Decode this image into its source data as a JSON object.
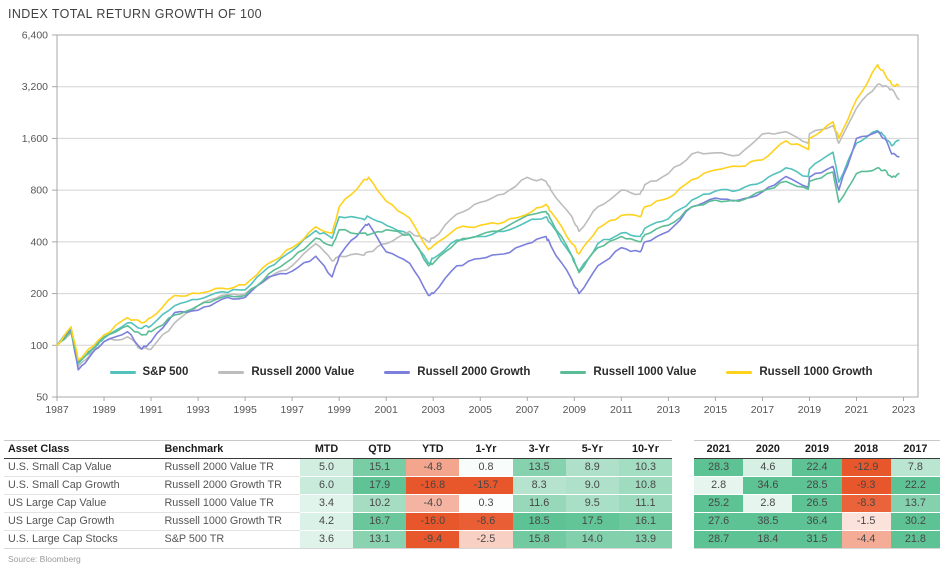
{
  "title": "INDEX TOTAL RETURN GROWTH OF 100",
  "source": "Source: Bloomberg",
  "chart_data": {
    "type": "line",
    "title": "INDEX TOTAL RETURN GROWTH OF 100",
    "y_scale": "log2",
    "ylim": [
      50,
      6400
    ],
    "grid": "horizontal",
    "legend_position": "bottom-center-inside",
    "y_tick_labels": [
      "6,400",
      "3,200",
      "1,600",
      "800",
      "400",
      "200",
      "100",
      "50"
    ],
    "y_tick_values": [
      6400,
      3200,
      1600,
      800,
      400,
      200,
      100,
      50
    ],
    "x_tick_labels": [
      "1987",
      "1989",
      "1991",
      "1993",
      "1995",
      "1997",
      "1999",
      "2001",
      "2003",
      "2005",
      "2007",
      "2009",
      "2011",
      "2013",
      "2015",
      "2017",
      "2019",
      "2021",
      "2023"
    ],
    "xlim": [
      1987,
      2023.6
    ],
    "x": [
      1987.0,
      1987.6,
      1987.9,
      1988.5,
      1989,
      1990,
      1990.6,
      1991,
      1992,
      1993,
      1994,
      1995,
      1996,
      1997,
      1998,
      1998.7,
      1999,
      2000,
      2000.25,
      2001,
      2002,
      2002.8,
      2003,
      2004,
      2005,
      2006,
      2007,
      2007.8,
      2008,
      2008.9,
      2009.2,
      2010,
      2011,
      2011.8,
      2012,
      2013,
      2014,
      2015,
      2016,
      2017,
      2018,
      2018.95,
      2019,
      2020,
      2020.25,
      2021,
      2021.9,
      2022.2,
      2022.5,
      2022.8
    ],
    "series": [
      {
        "name": "S&P 500",
        "color": "#53C2BD",
        "values": [
          100,
          125,
          78,
          95,
          110,
          135,
          125,
          130,
          170,
          185,
          205,
          210,
          285,
          355,
          465,
          420,
          560,
          545,
          560,
          500,
          440,
          300,
          320,
          410,
          430,
          460,
          525,
          560,
          510,
          330,
          270,
          390,
          450,
          430,
          480,
          545,
          700,
          790,
          800,
          895,
          1080,
          960,
          1060,
          1330,
          890,
          1500,
          1780,
          1650,
          1450,
          1560
        ]
      },
      {
        "name": "Russell 2000 Value",
        "color": "#BDBDBD",
        "values": [
          100,
          118,
          75,
          92,
          105,
          112,
          95,
          95,
          135,
          170,
          195,
          200,
          245,
          290,
          390,
          310,
          330,
          335,
          350,
          390,
          460,
          400,
          420,
          580,
          680,
          760,
          950,
          900,
          800,
          560,
          460,
          640,
          800,
          760,
          860,
          1000,
          1300,
          1320,
          1280,
          1700,
          1750,
          1500,
          1700,
          1900,
          1500,
          2400,
          3300,
          3250,
          3100,
          2700
        ]
      },
      {
        "name": "Russell 2000 Growth",
        "color": "#7C80DC",
        "values": [
          100,
          122,
          72,
          90,
          105,
          120,
          95,
          105,
          155,
          160,
          185,
          190,
          250,
          270,
          330,
          250,
          330,
          480,
          510,
          350,
          300,
          195,
          200,
          290,
          320,
          340,
          390,
          430,
          380,
          240,
          200,
          290,
          370,
          350,
          400,
          460,
          640,
          720,
          700,
          780,
          960,
          830,
          950,
          1100,
          800,
          1600,
          1750,
          1600,
          1300,
          1250
        ]
      },
      {
        "name": "Russell 1000 Value",
        "color": "#5BBD96",
        "values": [
          100,
          120,
          80,
          95,
          112,
          130,
          115,
          120,
          150,
          170,
          190,
          195,
          260,
          320,
          420,
          380,
          470,
          450,
          440,
          470,
          440,
          290,
          300,
          400,
          440,
          480,
          570,
          600,
          540,
          330,
          265,
          370,
          430,
          400,
          440,
          500,
          640,
          700,
          690,
          790,
          900,
          810,
          900,
          1020,
          680,
          1000,
          1080,
          1050,
          950,
          1000
        ]
      },
      {
        "name": "Russell 1000 Growth",
        "color": "#FFD21E",
        "values": [
          100,
          128,
          82,
          98,
          115,
          145,
          135,
          145,
          195,
          200,
          215,
          225,
          300,
          370,
          490,
          450,
          640,
          900,
          950,
          690,
          550,
          360,
          380,
          480,
          500,
          520,
          580,
          660,
          600,
          390,
          340,
          480,
          570,
          560,
          640,
          720,
          920,
          1050,
          1100,
          1200,
          1550,
          1380,
          1600,
          2000,
          1600,
          2700,
          4300,
          3800,
          3300,
          3250
        ]
      }
    ]
  },
  "table": {
    "col_headers_left": [
      "Asset Class",
      "Benchmark"
    ],
    "col_headers_returns": [
      "MTD",
      "QTD",
      "YTD",
      "1-Yr",
      "3-Yr",
      "5-Yr",
      "10-Yr"
    ],
    "col_headers_years": [
      "2021",
      "2020",
      "2019",
      "2018",
      "2017"
    ],
    "rows": [
      {
        "asset_class": "U.S. Small Cap Value",
        "benchmark": "Russell 2000 Value TR",
        "returns": [
          5.0,
          15.1,
          -4.8,
          0.8,
          13.5,
          8.9,
          10.3
        ],
        "years": [
          28.3,
          4.6,
          22.4,
          -12.9,
          7.8
        ]
      },
      {
        "asset_class": "U.S. Small Cap Growth",
        "benchmark": "Russell 2000 Growth TR",
        "returns": [
          6.0,
          17.9,
          -16.8,
          -15.7,
          8.3,
          9.0,
          10.8
        ],
        "years": [
          2.8,
          34.6,
          28.5,
          -9.3,
          22.2
        ]
      },
      {
        "asset_class": "US Large Cap Value",
        "benchmark": "Russell 1000 Value TR",
        "returns": [
          3.4,
          10.2,
          -4.0,
          0.3,
          11.6,
          9.5,
          11.1
        ],
        "years": [
          25.2,
          2.8,
          26.5,
          -8.3,
          13.7
        ]
      },
      {
        "asset_class": "US Large Cap Growth",
        "benchmark": "Russell 1000 Growth TR",
        "returns": [
          4.2,
          16.7,
          -16.0,
          -8.6,
          18.5,
          17.5,
          16.1
        ],
        "years": [
          27.6,
          38.5,
          36.4,
          -1.5,
          30.2
        ]
      },
      {
        "asset_class": "U.S. Large Cap Stocks",
        "benchmark": "S&P 500 TR",
        "returns": [
          3.6,
          13.1,
          -9.4,
          -2.5,
          15.8,
          14.0,
          13.9
        ],
        "years": [
          28.7,
          18.4,
          31.5,
          -4.4,
          21.8
        ]
      }
    ]
  },
  "heatmap": {
    "positive_color": "#5EC394",
    "negative_color": "#E8562B",
    "positive_saturation": 18,
    "negative_saturation": 9
  }
}
